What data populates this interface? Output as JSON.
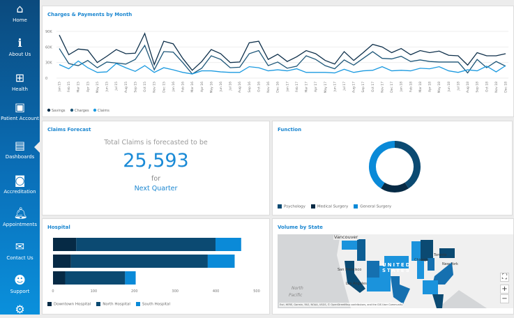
{
  "sidebar": {
    "items": [
      {
        "label": "Home",
        "icon": "home-icon"
      },
      {
        "label": "About Us",
        "icon": "info-icon"
      },
      {
        "label": "Health",
        "icon": "plus-box-icon"
      },
      {
        "label": "Patient Account",
        "icon": "folder-user-icon"
      },
      {
        "label": "Dashboards",
        "icon": "document-chart-icon"
      },
      {
        "label": "Accreditation",
        "icon": "certificate-icon"
      },
      {
        "label": "Appointments",
        "icon": "bell-icon"
      },
      {
        "label": "Contact Us",
        "icon": "envelope-icon"
      },
      {
        "label": "Support",
        "icon": "headset-icon"
      },
      {
        "label": "",
        "icon": "gear-icon"
      }
    ],
    "active": "Dashboards",
    "colors": {
      "top": "#0b4a7d",
      "bottom": "#0a90dc"
    }
  },
  "charges": {
    "title": "Charges & Payments by Month"
  },
  "claims_forecast": {
    "title": "Claims Forecast",
    "line1": "Total Claims is forecasted to be",
    "value": "25,593",
    "line2": "for",
    "period": "Next Quarter"
  },
  "function": {
    "title": "Function"
  },
  "hospital": {
    "title": "Hospital"
  },
  "volume": {
    "title": "Volume by State",
    "labels": {
      "country": "UNITED STATES",
      "ocean1": "North",
      "ocean2": "Pacific",
      "city1": "Vancouver",
      "city2": "San Francisco",
      "city3": "Los Angeles",
      "city4": "Chicago",
      "city5": "Toronto",
      "city6": "New York"
    },
    "attribution": "Esri, HERE, Garmin, FAO, NOAA, USGS, © OpenStreetMap contributors, and the GIS User Community",
    "controls": {
      "fit": "⛶",
      "zoom_in": "+",
      "zoom_out": "−"
    }
  },
  "chart_data": [
    {
      "type": "line",
      "title": "Charges & Payments by Month",
      "x": [
        "Jan 15",
        "Feb 15",
        "Mar 15",
        "Apr 15",
        "May 15",
        "Jun 15",
        "Jul 15",
        "Aug 15",
        "Sep 15",
        "Oct 15",
        "Nov 15",
        "Dec 15",
        "Jan 16",
        "Feb 16",
        "Mar 16",
        "Apr 16",
        "May 16",
        "Jun 16",
        "Jul 16",
        "Aug 16",
        "Sep 16",
        "Oct 16",
        "Nov 16",
        "Dec 16",
        "Jan 17",
        "Feb 17",
        "Mar 17",
        "Apr 17",
        "May 17",
        "Jun 17",
        "Jul 17",
        "Aug 17",
        "Sep 17",
        "Oct 17",
        "Nov 17",
        "Dec 17",
        "Jan 18",
        "Feb 18",
        "Mar 18",
        "Apr 18",
        "May 18",
        "Jun 18",
        "Jul 18",
        "Aug 18",
        "Sep 18",
        "Oct 18",
        "Nov 18",
        "Dec 18"
      ],
      "ylim": [
        0,
        90000
      ],
      "yticks": [
        "0",
        "30K",
        "60K",
        "90K"
      ],
      "grid": true,
      "legend": "bottom-left",
      "series": [
        {
          "name": "Savings",
          "color": "#0d2f4a",
          "values": [
            83000,
            45000,
            56000,
            54000,
            30000,
            42000,
            55000,
            47000,
            48000,
            86000,
            26000,
            71000,
            66000,
            38000,
            15000,
            32000,
            55000,
            47000,
            30000,
            31000,
            68000,
            71000,
            36000,
            46000,
            32000,
            41000,
            53000,
            47000,
            34000,
            27000,
            51000,
            34000,
            49000,
            65000,
            60000,
            49000,
            57000,
            45000,
            53000,
            49000,
            52000,
            44000,
            43000,
            25000,
            49000,
            43000,
            43000,
            47000
          ]
        },
        {
          "name": "Charges",
          "color": "#1d5678",
          "values": [
            57000,
            28000,
            24000,
            34000,
            20000,
            31000,
            29000,
            27000,
            36000,
            63000,
            16000,
            51000,
            50000,
            30000,
            8000,
            19000,
            43000,
            36000,
            20000,
            21000,
            47000,
            53000,
            24000,
            31000,
            19000,
            23000,
            43000,
            36000,
            24000,
            18000,
            35000,
            25000,
            38000,
            51000,
            38000,
            37000,
            42000,
            32000,
            35000,
            32000,
            31000,
            31000,
            31000,
            10000,
            36000,
            20000,
            32000,
            23000
          ]
        },
        {
          "name": "Claims",
          "color": "#1b9ae0",
          "values": [
            26000,
            18000,
            33000,
            20000,
            11000,
            12000,
            28000,
            20000,
            13000,
            24000,
            11000,
            20000,
            16000,
            11000,
            8000,
            14000,
            14000,
            12000,
            11000,
            11000,
            22000,
            20000,
            14000,
            16000,
            14000,
            18000,
            11000,
            11000,
            11000,
            10000,
            17000,
            11000,
            14000,
            15000,
            22000,
            14000,
            15000,
            14000,
            19000,
            18000,
            22000,
            14000,
            11000,
            16000,
            14000,
            23000,
            12000,
            24000
          ]
        }
      ]
    },
    {
      "type": "pie",
      "title": "Function",
      "donut": true,
      "series": [
        {
          "name": "Psychology",
          "value": 41,
          "color": "#0b4a72"
        },
        {
          "name": "Medical Surgery",
          "value": 18,
          "color": "#062a45"
        },
        {
          "name": "General Surgery",
          "value": 41,
          "color": "#0a8ad8"
        }
      ]
    },
    {
      "type": "bar",
      "title": "Hospital",
      "orientation": "horizontal",
      "stacked": true,
      "xlim": [
        0,
        500
      ],
      "xticks": [
        "0",
        "100",
        "200",
        "300",
        "400",
        "500"
      ],
      "legend": "bottom-left",
      "categories": [
        "",
        "",
        ""
      ],
      "series": [
        {
          "name": "Downtown Hospital",
          "color": "#062a45",
          "values": [
            57,
            44,
            30
          ]
        },
        {
          "name": "North Hospital",
          "color": "#0b4a72",
          "values": [
            342,
            336,
            147
          ]
        },
        {
          "name": "South Hospital",
          "color": "#0a8ad8",
          "values": [
            63,
            66,
            26
          ]
        }
      ]
    }
  ]
}
